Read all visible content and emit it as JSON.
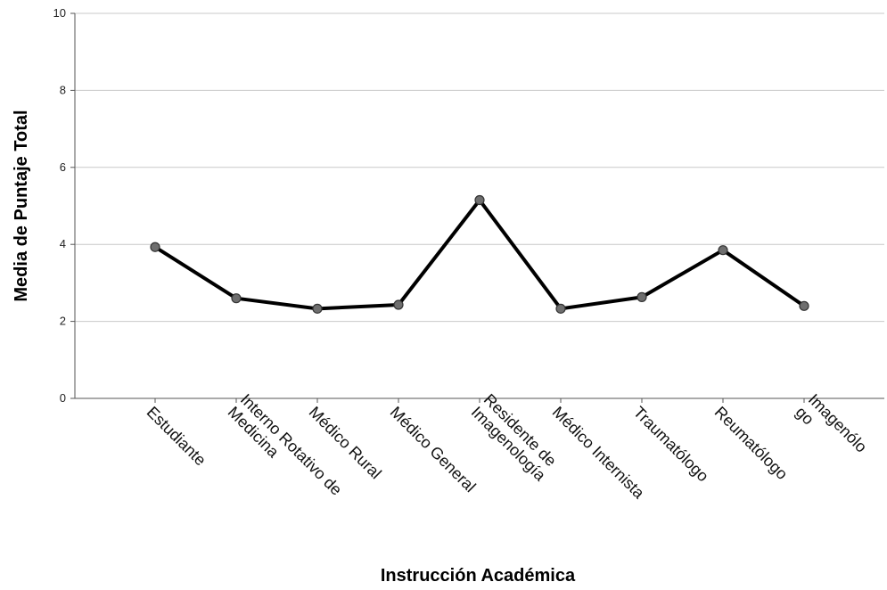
{
  "chart_data": {
    "type": "line",
    "xlabel": "Instrucción Académica",
    "ylabel": "Media de Puntaje Total",
    "ylim": [
      0,
      10
    ],
    "yticks": [
      0,
      2,
      4,
      6,
      8,
      10
    ],
    "grid": true,
    "categories": [
      [
        "Estudiante"
      ],
      [
        "Interno Rotativo de",
        "Medicina"
      ],
      [
        "Médico Rural"
      ],
      [
        "Médico General"
      ],
      [
        "Residente de",
        "Imagenología"
      ],
      [
        "Médico Internista"
      ],
      [
        "Traumatólogo"
      ],
      [
        "Reumatólogo"
      ],
      [
        "Imagenólo",
        "go"
      ]
    ],
    "series": [
      {
        "values": [
          3.93,
          2.6,
          2.33,
          2.43,
          5.15,
          2.33,
          2.63,
          3.85,
          2.4
        ],
        "color": "#000000",
        "marker_color": "#6e6e6e"
      }
    ]
  }
}
